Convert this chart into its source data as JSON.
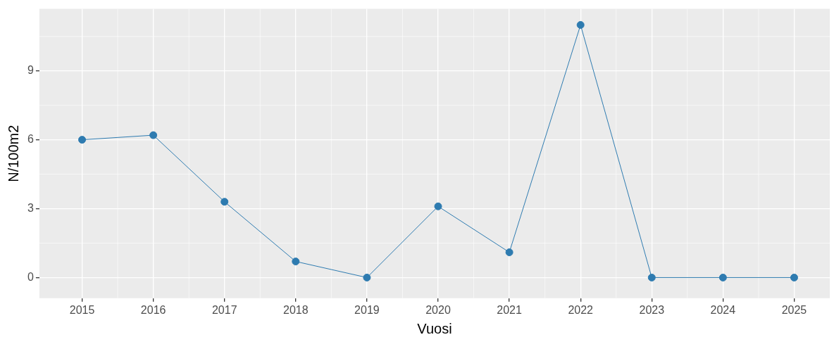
{
  "chart_data": {
    "type": "line",
    "xlabel": "Vuosi",
    "ylabel": "N/100m2",
    "x": [
      2015,
      2016,
      2017,
      2018,
      2019,
      2020,
      2021,
      2022,
      2023,
      2024,
      2025
    ],
    "series": [
      {
        "color": "#2e7bb0",
        "values": [
          6.0,
          6.2,
          3.3,
          0.7,
          0,
          3.1,
          1.1,
          11.0,
          0,
          0,
          0
        ]
      }
    ],
    "xlim": [
      2014.4,
      2025.5
    ],
    "xticks": [
      2015,
      2016,
      2017,
      2018,
      2019,
      2020,
      2021,
      2022,
      2023,
      2024,
      2025
    ],
    "ylim": [
      -0.9,
      11.7
    ],
    "yticks": [
      0,
      3,
      6,
      9
    ],
    "grid": true,
    "legend": false,
    "marker": "circle",
    "line_style": "solid"
  }
}
